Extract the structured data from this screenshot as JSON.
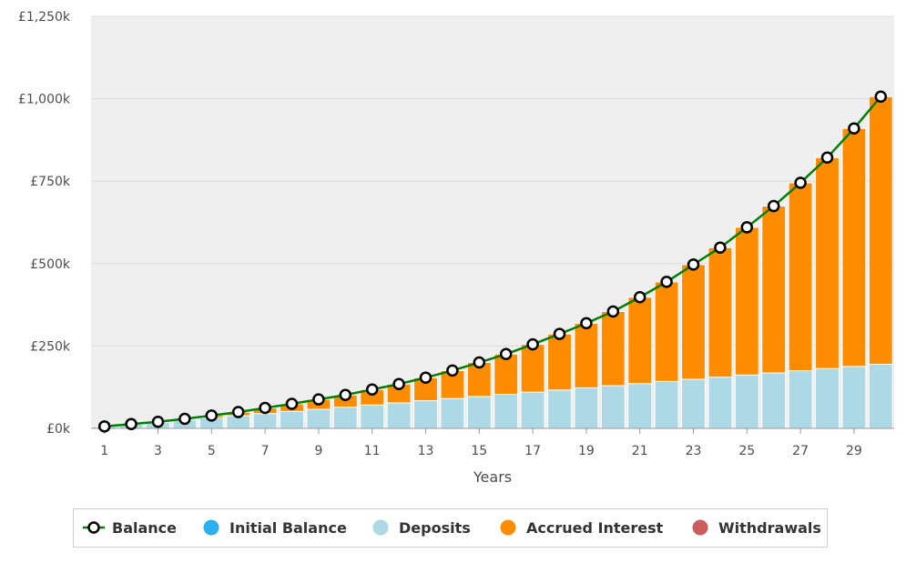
{
  "chart_data": {
    "type": "bar",
    "xlabel": "Years",
    "ylabel": "",
    "ylim": [
      0,
      1250000
    ],
    "y_ticks": [
      {
        "value": 0,
        "label": "£0k"
      },
      {
        "value": 250000,
        "label": "£250k"
      },
      {
        "value": 500000,
        "label": "£500k"
      },
      {
        "value": 750000,
        "label": "£750k"
      },
      {
        "value": 1000000,
        "label": "£1,000k"
      },
      {
        "value": 1250000,
        "label": "£1,250k"
      }
    ],
    "x_tick_labels": [
      "1",
      "3",
      "5",
      "7",
      "9",
      "11",
      "13",
      "15",
      "17",
      "19",
      "21",
      "23",
      "25",
      "27",
      "29"
    ],
    "categories": [
      1,
      2,
      3,
      4,
      5,
      6,
      7,
      8,
      9,
      10,
      11,
      12,
      13,
      14,
      15,
      16,
      17,
      18,
      19,
      20,
      21,
      22,
      23,
      24,
      25,
      26,
      27,
      28,
      29,
      30
    ],
    "stacked": true,
    "grid": true,
    "legend_position": "bottom",
    "series": [
      {
        "name": "Initial Balance",
        "type": "bar",
        "color": "#2ab0ea",
        "values": [
          0,
          0,
          0,
          0,
          0,
          0,
          0,
          0,
          0,
          0,
          0,
          0,
          0,
          0,
          0,
          0,
          0,
          0,
          0,
          0,
          0,
          0,
          0,
          0,
          0,
          0,
          0,
          0,
          0,
          0
        ]
      },
      {
        "name": "Deposits",
        "type": "bar",
        "color": "#add8e6",
        "values": [
          6000,
          12500,
          19000,
          25500,
          32000,
          38500,
          45000,
          51500,
          58000,
          64500,
          71000,
          77500,
          84000,
          90500,
          97000,
          103500,
          110000,
          116500,
          123000,
          129500,
          136000,
          142500,
          149000,
          155500,
          162000,
          168500,
          175000,
          181500,
          188000,
          194500
        ]
      },
      {
        "name": "Accrued Interest",
        "type": "bar",
        "color": "#ff8c00",
        "values": [
          0,
          500,
          1000,
          3500,
          7000,
          11000,
          17000,
          23000,
          30000,
          37000,
          47000,
          57000,
          70000,
          85000,
          103000,
          122000,
          145000,
          170000,
          196000,
          225000,
          262000,
          302000,
          348000,
          393000,
          448000,
          506000,
          570000,
          640000,
          722000,
          812000
        ]
      },
      {
        "name": "Withdrawals",
        "type": "bar",
        "color": "#cd5c5c",
        "values": [
          0,
          0,
          0,
          0,
          0,
          0,
          0,
          0,
          0,
          0,
          0,
          0,
          0,
          0,
          0,
          0,
          0,
          0,
          0,
          0,
          0,
          0,
          0,
          0,
          0,
          0,
          0,
          0,
          0,
          0
        ]
      },
      {
        "name": "Balance",
        "type": "line",
        "color": "#008000",
        "values": [
          6000,
          13000,
          20000,
          29000,
          39000,
          49500,
          62000,
          74500,
          88000,
          101500,
          118000,
          134500,
          154000,
          175500,
          200000,
          225500,
          255000,
          286500,
          319000,
          354500,
          398000,
          444500,
          497000,
          548500,
          610000,
          674500,
          745000,
          821500,
          910000,
          1006500
        ]
      }
    ]
  },
  "legend": {
    "items": [
      {
        "label": "Balance",
        "kind": "line-marker",
        "color": "#008000"
      },
      {
        "label": "Initial Balance",
        "kind": "dot",
        "color": "#2ab0ea"
      },
      {
        "label": "Deposits",
        "kind": "dot",
        "color": "#add8e6"
      },
      {
        "label": "Accrued Interest",
        "kind": "dot",
        "color": "#ff8c00"
      },
      {
        "label": "Withdrawals",
        "kind": "dot",
        "color": "#cd5c5c"
      }
    ]
  }
}
